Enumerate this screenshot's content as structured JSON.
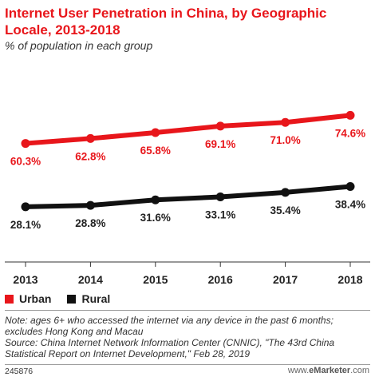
{
  "title": "Internet User Penetration in China, by Geographic Locale, 2013-2018",
  "subtitle": "% of population in each group",
  "legend": {
    "urban": "Urban",
    "rural": "Rural"
  },
  "note": "Note: ages 6+ who accessed the internet via any device in the past 6 months; excludes Hong Kong and Macau",
  "source": "Source: China Internet Network Information Center (CNNIC), \"The 43rd China Statistical Report on Internet Development,\" Feb 28, 2019",
  "footer": {
    "id": "245876",
    "brand_prefix": "www.",
    "brand_name": "eMarketer",
    "brand_suffix": ".com"
  },
  "colors": {
    "urban": "#e8161b",
    "rural": "#111111",
    "title": "#e8161b"
  },
  "chart_data": {
    "type": "line",
    "categories": [
      "2013",
      "2014",
      "2015",
      "2016",
      "2017",
      "2018"
    ],
    "series": [
      {
        "name": "Urban",
        "values": [
          60.3,
          62.8,
          65.8,
          69.1,
          71.0,
          74.6
        ],
        "labels": [
          "60.3%",
          "62.8%",
          "65.8%",
          "69.1%",
          "71.0%",
          "74.6%"
        ],
        "color": "#e8161b"
      },
      {
        "name": "Rural",
        "values": [
          28.1,
          28.8,
          31.6,
          33.1,
          35.4,
          38.4
        ],
        "labels": [
          "28.1%",
          "28.8%",
          "31.6%",
          "33.1%",
          "35.4%",
          "38.4%"
        ],
        "color": "#111111"
      }
    ],
    "ylim": [
      0,
      95
    ],
    "grid": false,
    "legend_position": "bottom-left"
  }
}
